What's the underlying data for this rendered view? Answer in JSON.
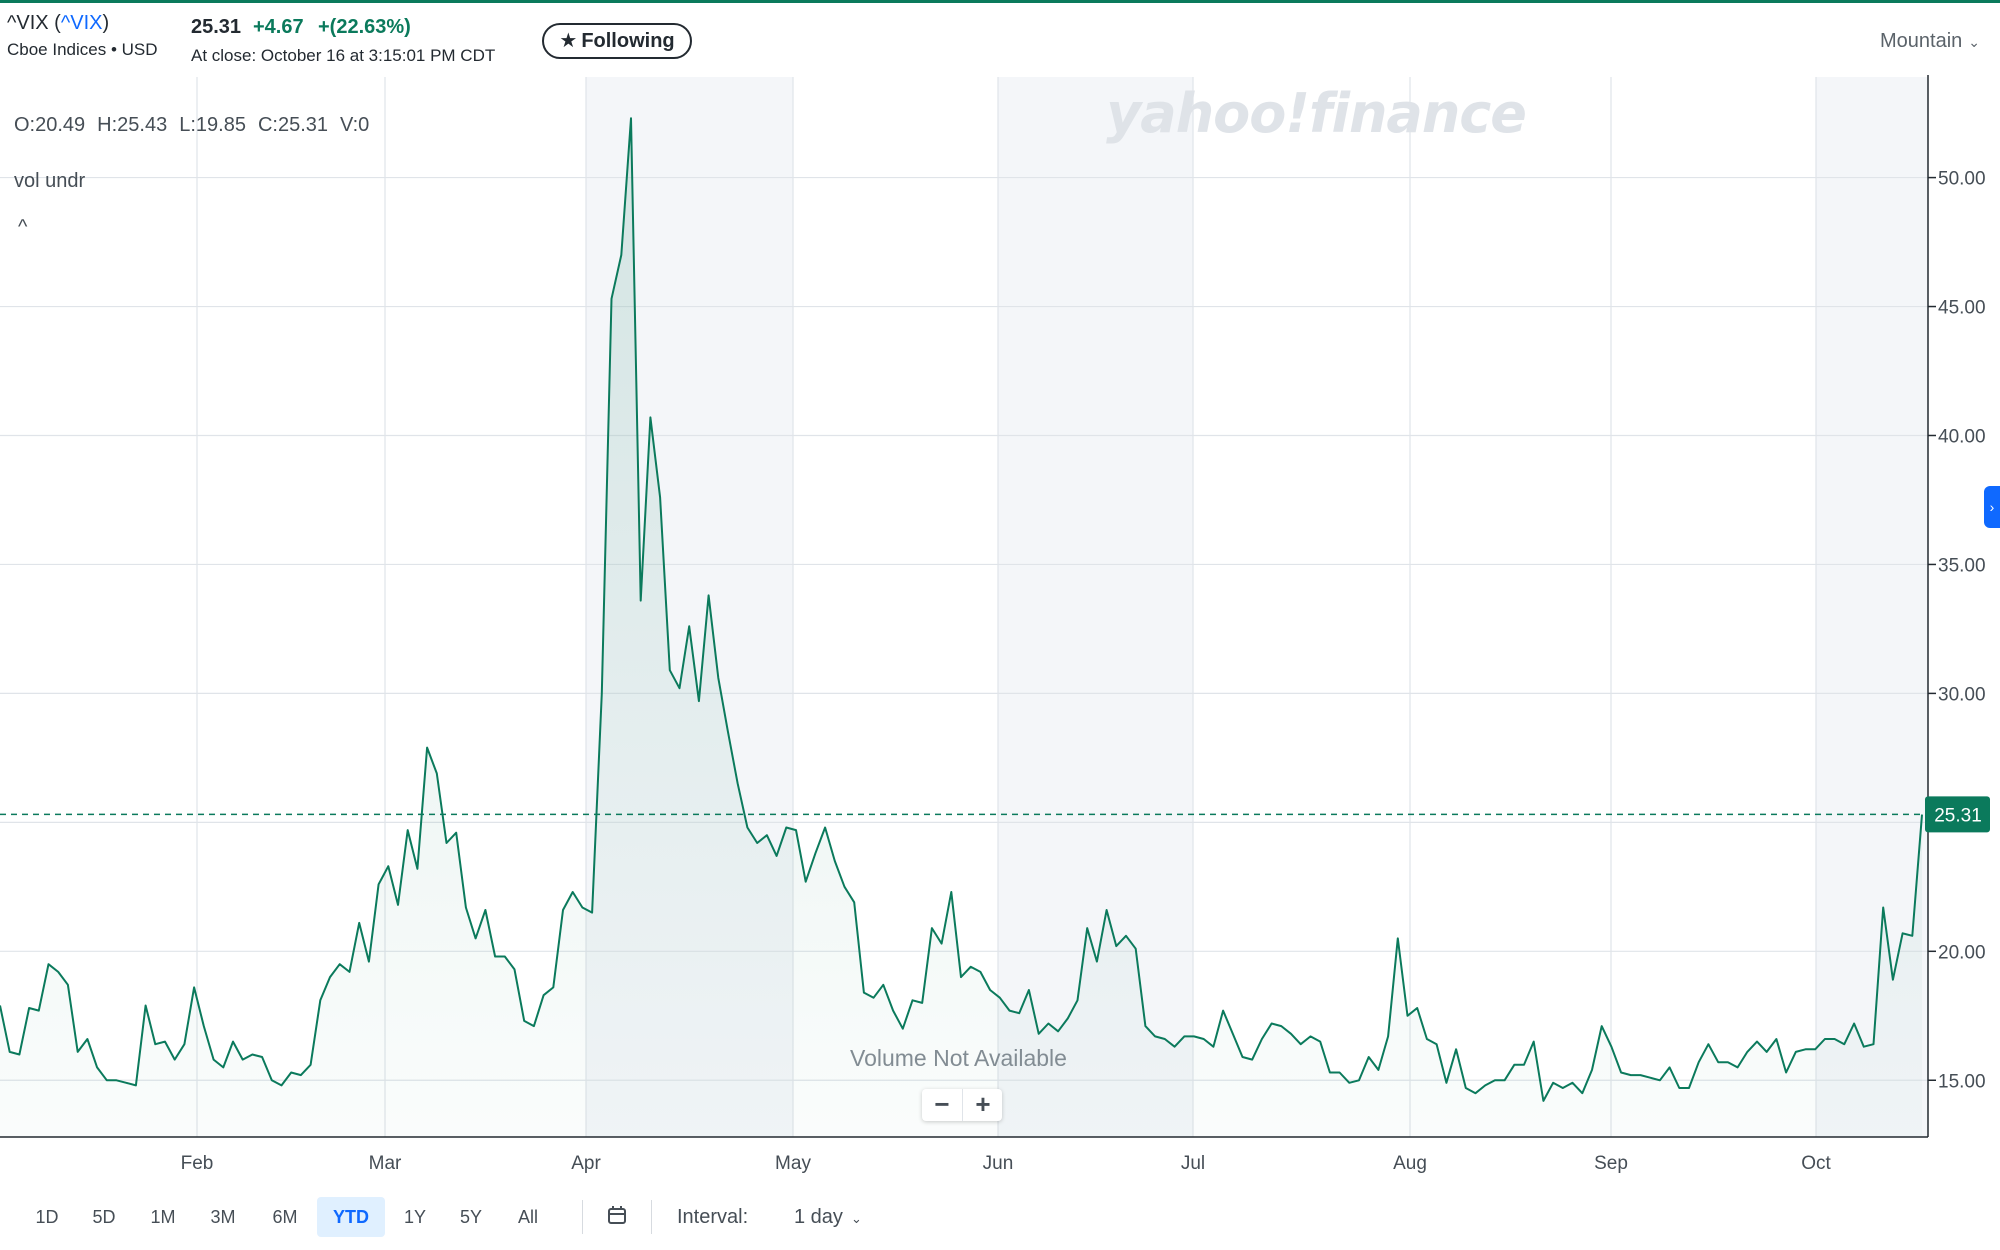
{
  "header": {
    "symbol": "^VIX",
    "paren_open": " (",
    "symbol_link": "^VIX",
    "paren_close": ")",
    "exchange": "Cboe Indices • USD",
    "price": "25.31",
    "change": "+4.67",
    "change_pct": "+(22.63%)",
    "as_of": "At close: October 16 at 3:15:01 PM CDT",
    "follow_label": "Following",
    "chart_type": "Mountain"
  },
  "ohlc": {
    "open": "O:20.49",
    "high": "H:25.43",
    "low": "L:19.85",
    "close": "C:25.31",
    "volume": "V:0"
  },
  "study_label": "vol undr",
  "collapse_glyph": "^",
  "watermark": "yahoo!finance",
  "volume_note": "Volume Not Available",
  "zoom": {
    "minus": "−",
    "plus": "+"
  },
  "range_buttons": [
    "1D",
    "5D",
    "1M",
    "3M",
    "6M",
    "YTD",
    "1Y",
    "5Y",
    "All"
  ],
  "active_range": "YTD",
  "interval": {
    "label": "Interval:",
    "value": "1 day"
  },
  "colors": {
    "line": "#0b7a5c",
    "up": "#0b7a5c",
    "accent": "#0f69ff",
    "grid": "#e0e4e9"
  },
  "chart_data": {
    "type": "area",
    "x_ticks": [
      "Feb",
      "Mar",
      "Apr",
      "May",
      "Jun",
      "Jul",
      "Aug",
      "Sep",
      "Oct"
    ],
    "y_ticks": [
      "15.00",
      "20.00",
      "25.00",
      "30.00",
      "35.00",
      "40.00",
      "45.00",
      "50.00"
    ],
    "ylim": [
      12.8,
      53.9
    ],
    "x_range": [
      "Jan",
      "Oct"
    ],
    "last_value": 25.31,
    "last_label": "25.31",
    "grid": true,
    "values": [
      17.9,
      16.1,
      16.0,
      17.8,
      17.7,
      19.5,
      19.2,
      18.7,
      16.1,
      16.6,
      15.5,
      15.0,
      15.0,
      14.9,
      14.8,
      17.9,
      16.4,
      16.5,
      15.8,
      16.4,
      18.6,
      17.1,
      15.8,
      15.5,
      16.5,
      15.8,
      16.0,
      15.9,
      15.0,
      14.8,
      15.3,
      15.2,
      15.6,
      18.1,
      19.0,
      19.5,
      19.2,
      21.1,
      19.6,
      22.6,
      23.3,
      21.8,
      24.7,
      23.2,
      27.9,
      26.9,
      24.2,
      24.6,
      21.7,
      20.5,
      21.6,
      19.8,
      19.8,
      19.3,
      17.3,
      17.1,
      18.3,
      18.6,
      21.6,
      22.3,
      21.7,
      21.5,
      30.0,
      45.3,
      47.0,
      52.3,
      33.6,
      40.7,
      37.6,
      30.9,
      30.2,
      32.6,
      29.7,
      33.8,
      30.6,
      28.5,
      26.5,
      24.8,
      24.2,
      24.5,
      23.7,
      24.8,
      24.7,
      22.7,
      23.8,
      24.8,
      23.5,
      22.5,
      21.9,
      18.4,
      18.2,
      18.7,
      17.7,
      17.0,
      18.1,
      18.0,
      20.9,
      20.3,
      22.3,
      19.0,
      19.4,
      19.2,
      18.5,
      18.2,
      17.7,
      17.6,
      18.5,
      16.8,
      17.2,
      16.9,
      17.4,
      18.1,
      20.9,
      19.6,
      21.6,
      20.2,
      20.6,
      20.1,
      17.1,
      16.7,
      16.6,
      16.3,
      16.7,
      16.7,
      16.6,
      16.3,
      17.7,
      16.8,
      15.9,
      15.8,
      16.6,
      17.2,
      17.1,
      16.8,
      16.4,
      16.7,
      16.5,
      15.3,
      15.3,
      14.9,
      15.0,
      15.9,
      15.4,
      16.7,
      20.5,
      17.5,
      17.8,
      16.6,
      16.4,
      14.9,
      16.2,
      14.7,
      14.5,
      14.8,
      15.0,
      15.0,
      15.6,
      15.6,
      16.5,
      14.2,
      14.9,
      14.7,
      14.9,
      14.5,
      15.4,
      17.1,
      16.3,
      15.3,
      15.2,
      15.2,
      15.1,
      15.0,
      15.5,
      14.7,
      14.7,
      15.7,
      16.4,
      15.7,
      15.7,
      15.5,
      16.1,
      16.5,
      16.1,
      16.6,
      15.3,
      16.1,
      16.2,
      16.2,
      16.6,
      16.6,
      16.4,
      17.2,
      16.3,
      16.4,
      21.7,
      18.9,
      20.7,
      20.6,
      25.3
    ]
  }
}
